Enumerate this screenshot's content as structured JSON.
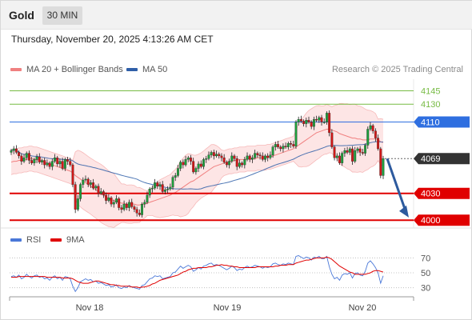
{
  "header": {
    "instrument": "Gold",
    "timeframe": "30 MIN"
  },
  "timestamp": "Thursday, November 20, 2025 4:13:26 AM CET",
  "legend": {
    "ma20": {
      "label": "MA 20 + Bollinger Bands",
      "color": "#f08080"
    },
    "ma50": {
      "label": "MA 50",
      "color": "#2f5fa8"
    }
  },
  "copyright": "Research © 2025 Trading Central",
  "rsi_legend": {
    "rsi": {
      "label": "RSI",
      "color": "#4a78d8"
    },
    "ma9": {
      "label": "9MA",
      "color": "#e00000"
    }
  },
  "colors": {
    "resistance": "#77bb44",
    "pivot": "#2f6fe0",
    "support": "#e00000",
    "last": "#333333",
    "up_candle": "#1e9e3c",
    "down_candle": "#d01818",
    "band_fill": "#fde0e0",
    "arrow": "#2d5a9e"
  },
  "chart_data": [
    {
      "type": "candlestick",
      "instrument": "Gold",
      "timeframe": "30 MIN",
      "x_ticks": [
        "Nov 18",
        "Nov 19",
        "Nov 20"
      ],
      "ylim": [
        3993,
        4158
      ],
      "levels": [
        {
          "value": 4145,
          "label": "4145",
          "kind": "resistance"
        },
        {
          "value": 4130,
          "label": "4130",
          "kind": "resistance"
        },
        {
          "value": 4110,
          "label": "4110",
          "kind": "pivot"
        },
        {
          "value": 4069,
          "label": "4069",
          "kind": "last"
        },
        {
          "value": 4030,
          "label": "4030",
          "kind": "support"
        },
        {
          "value": 4000,
          "label": "4000",
          "kind": "support"
        }
      ],
      "closes": [
        4078,
        4080,
        4076,
        4072,
        4066,
        4070,
        4075,
        4067,
        4064,
        4068,
        4071,
        4065,
        4067,
        4062,
        4064,
        4060,
        4066,
        4070,
        4063,
        4066,
        4058,
        4068,
        4066,
        4062,
        4040,
        4012,
        4024,
        4040,
        4045,
        4046,
        4040,
        4042,
        4036,
        4038,
        4030,
        4032,
        4028,
        4022,
        4025,
        4018,
        4020,
        4024,
        4014,
        4012,
        4018,
        4014,
        4020,
        4015,
        4012,
        4008,
        4006,
        4018,
        4020,
        4028,
        4035,
        4036,
        4042,
        4038,
        4040,
        4032,
        4034,
        4035,
        4037,
        4048,
        4050,
        4058,
        4065,
        4062,
        4068,
        4070,
        4066,
        4054,
        4058,
        4063,
        4060,
        4068,
        4069,
        4073,
        4076,
        4072,
        4074,
        4072,
        4070,
        4065,
        4062,
        4066,
        4072,
        4069,
        4060,
        4064,
        4062,
        4068,
        4072,
        4068,
        4070,
        4075,
        4073,
        4072,
        4068,
        4072,
        4070,
        4073,
        4082,
        4085,
        4082,
        4080,
        4083,
        4082,
        4086,
        4085,
        4083,
        4110,
        4113,
        4111,
        4108,
        4112,
        4110,
        4105,
        4113,
        4112,
        4115,
        4110,
        4110,
        4120,
        4098,
        4082,
        4070,
        4072,
        4064,
        4075,
        4078,
        4076,
        4080,
        4066,
        4078,
        4080,
        4076,
        4075,
        4084,
        4102,
        4106,
        4100,
        4092,
        4080,
        4050,
        4069
      ],
      "ma20": [
        4065,
        4066,
        4066,
        4067,
        4067,
        4068,
        4068,
        4069,
        4069,
        4068,
        4068,
        4067,
        4066,
        4065,
        4064,
        4063,
        4062,
        4061,
        4060,
        4059,
        4058,
        4057,
        4056,
        4055,
        4053,
        4050,
        4048,
        4046,
        4044,
        4042,
        4040,
        4038,
        4036,
        4034,
        4032,
        4030,
        4028,
        4026,
        4024,
        4023,
        4022,
        4021,
        4020,
        4019,
        4019,
        4018,
        4018,
        4018,
        4018,
        4017,
        4017,
        4018,
        4018,
        4019,
        4020,
        4021,
        4022,
        4023,
        4024,
        4025,
        4026,
        4027,
        4028,
        4030,
        4031,
        4033,
        4035,
        4037,
        4039,
        4041,
        4043,
        4044,
        4046,
        4048,
        4050,
        4052,
        4054,
        4056,
        4058,
        4060,
        4061,
        4062,
        4063,
        4064,
        4065,
        4066,
        4066,
        4067,
        4067,
        4068,
        4068,
        4068,
        4069,
        4069,
        4069,
        4069,
        4070,
        4070,
        4070,
        4070,
        4071,
        4071,
        4072,
        4073,
        4074,
        4075,
        4076,
        4077,
        4078,
        4079,
        4080,
        4082,
        4084,
        4086,
        4088,
        4090,
        4092,
        4094,
        4096,
        4098,
        4099,
        4100,
        4101,
        4102,
        4102,
        4101,
        4100,
        4099,
        4097,
        4096,
        4095,
        4094,
        4093,
        4092,
        4092,
        4091,
        4091,
        4090,
        4090,
        4090,
        4091,
        4091,
        4091,
        4090,
        4088,
        4087
      ]
    },
    {
      "type": "line",
      "title": "RSI",
      "y_ticks": [
        70,
        50,
        30
      ],
      "ylim": [
        20,
        80
      ],
      "series": [
        {
          "name": "RSI",
          "values": [
            45,
            46,
            44,
            47,
            42,
            44,
            48,
            45,
            43,
            46,
            47,
            44,
            45,
            42,
            43,
            40,
            44,
            46,
            42,
            44,
            40,
            45,
            44,
            42,
            32,
            25,
            30,
            38,
            40,
            42,
            40,
            41,
            38,
            39,
            36,
            37,
            35,
            33,
            34,
            31,
            32,
            34,
            30,
            29,
            31,
            30,
            33,
            31,
            30,
            29,
            28,
            33,
            34,
            38,
            42,
            43,
            46,
            45,
            46,
            42,
            43,
            44,
            45,
            50,
            51,
            55,
            59,
            56,
            58,
            60,
            58,
            52,
            54,
            57,
            55,
            59,
            60,
            62,
            63,
            60,
            61,
            60,
            58,
            56,
            54,
            56,
            59,
            57,
            53,
            55,
            54,
            57,
            59,
            57,
            58,
            60,
            59,
            58,
            56,
            58,
            57,
            58,
            62,
            63,
            61,
            60,
            62,
            61,
            63,
            62,
            61,
            72,
            73,
            71,
            69,
            71,
            70,
            67,
            71,
            70,
            72,
            69,
            69,
            72,
            58,
            48,
            42,
            44,
            40,
            47,
            49,
            48,
            50,
            43,
            49,
            50,
            47,
            46,
            52,
            63,
            66,
            62,
            57,
            50,
            36,
            46
          ]
        },
        {
          "name": "9MA",
          "values": [
            44,
            44,
            44,
            45,
            45,
            45,
            45,
            45,
            45,
            45,
            45,
            45,
            45,
            45,
            44,
            44,
            44,
            44,
            44,
            44,
            43,
            43,
            43,
            43,
            42,
            40,
            38,
            37,
            36,
            36,
            36,
            37,
            38,
            39,
            39,
            38,
            37,
            36,
            35,
            34,
            34,
            33,
            33,
            32,
            32,
            32,
            32,
            31,
            31,
            31,
            30,
            31,
            31,
            32,
            33,
            35,
            36,
            38,
            40,
            41,
            42,
            43,
            44,
            45,
            46,
            47,
            49,
            51,
            52,
            54,
            55,
            56,
            56,
            57,
            57,
            57,
            57,
            58,
            58,
            59,
            60,
            60,
            61,
            60,
            60,
            59,
            59,
            58,
            58,
            57,
            57,
            57,
            57,
            57,
            57,
            57,
            58,
            58,
            58,
            58,
            58,
            58,
            58,
            59,
            59,
            60,
            60,
            60,
            61,
            61,
            61,
            63,
            64,
            65,
            66,
            67,
            67,
            68,
            69,
            70,
            70,
            70,
            70,
            71,
            70,
            68,
            65,
            62,
            59,
            57,
            55,
            53,
            51,
            50,
            48,
            48,
            48,
            48,
            48,
            49,
            50,
            52,
            53,
            53,
            52,
            51
          ]
        }
      ]
    }
  ]
}
